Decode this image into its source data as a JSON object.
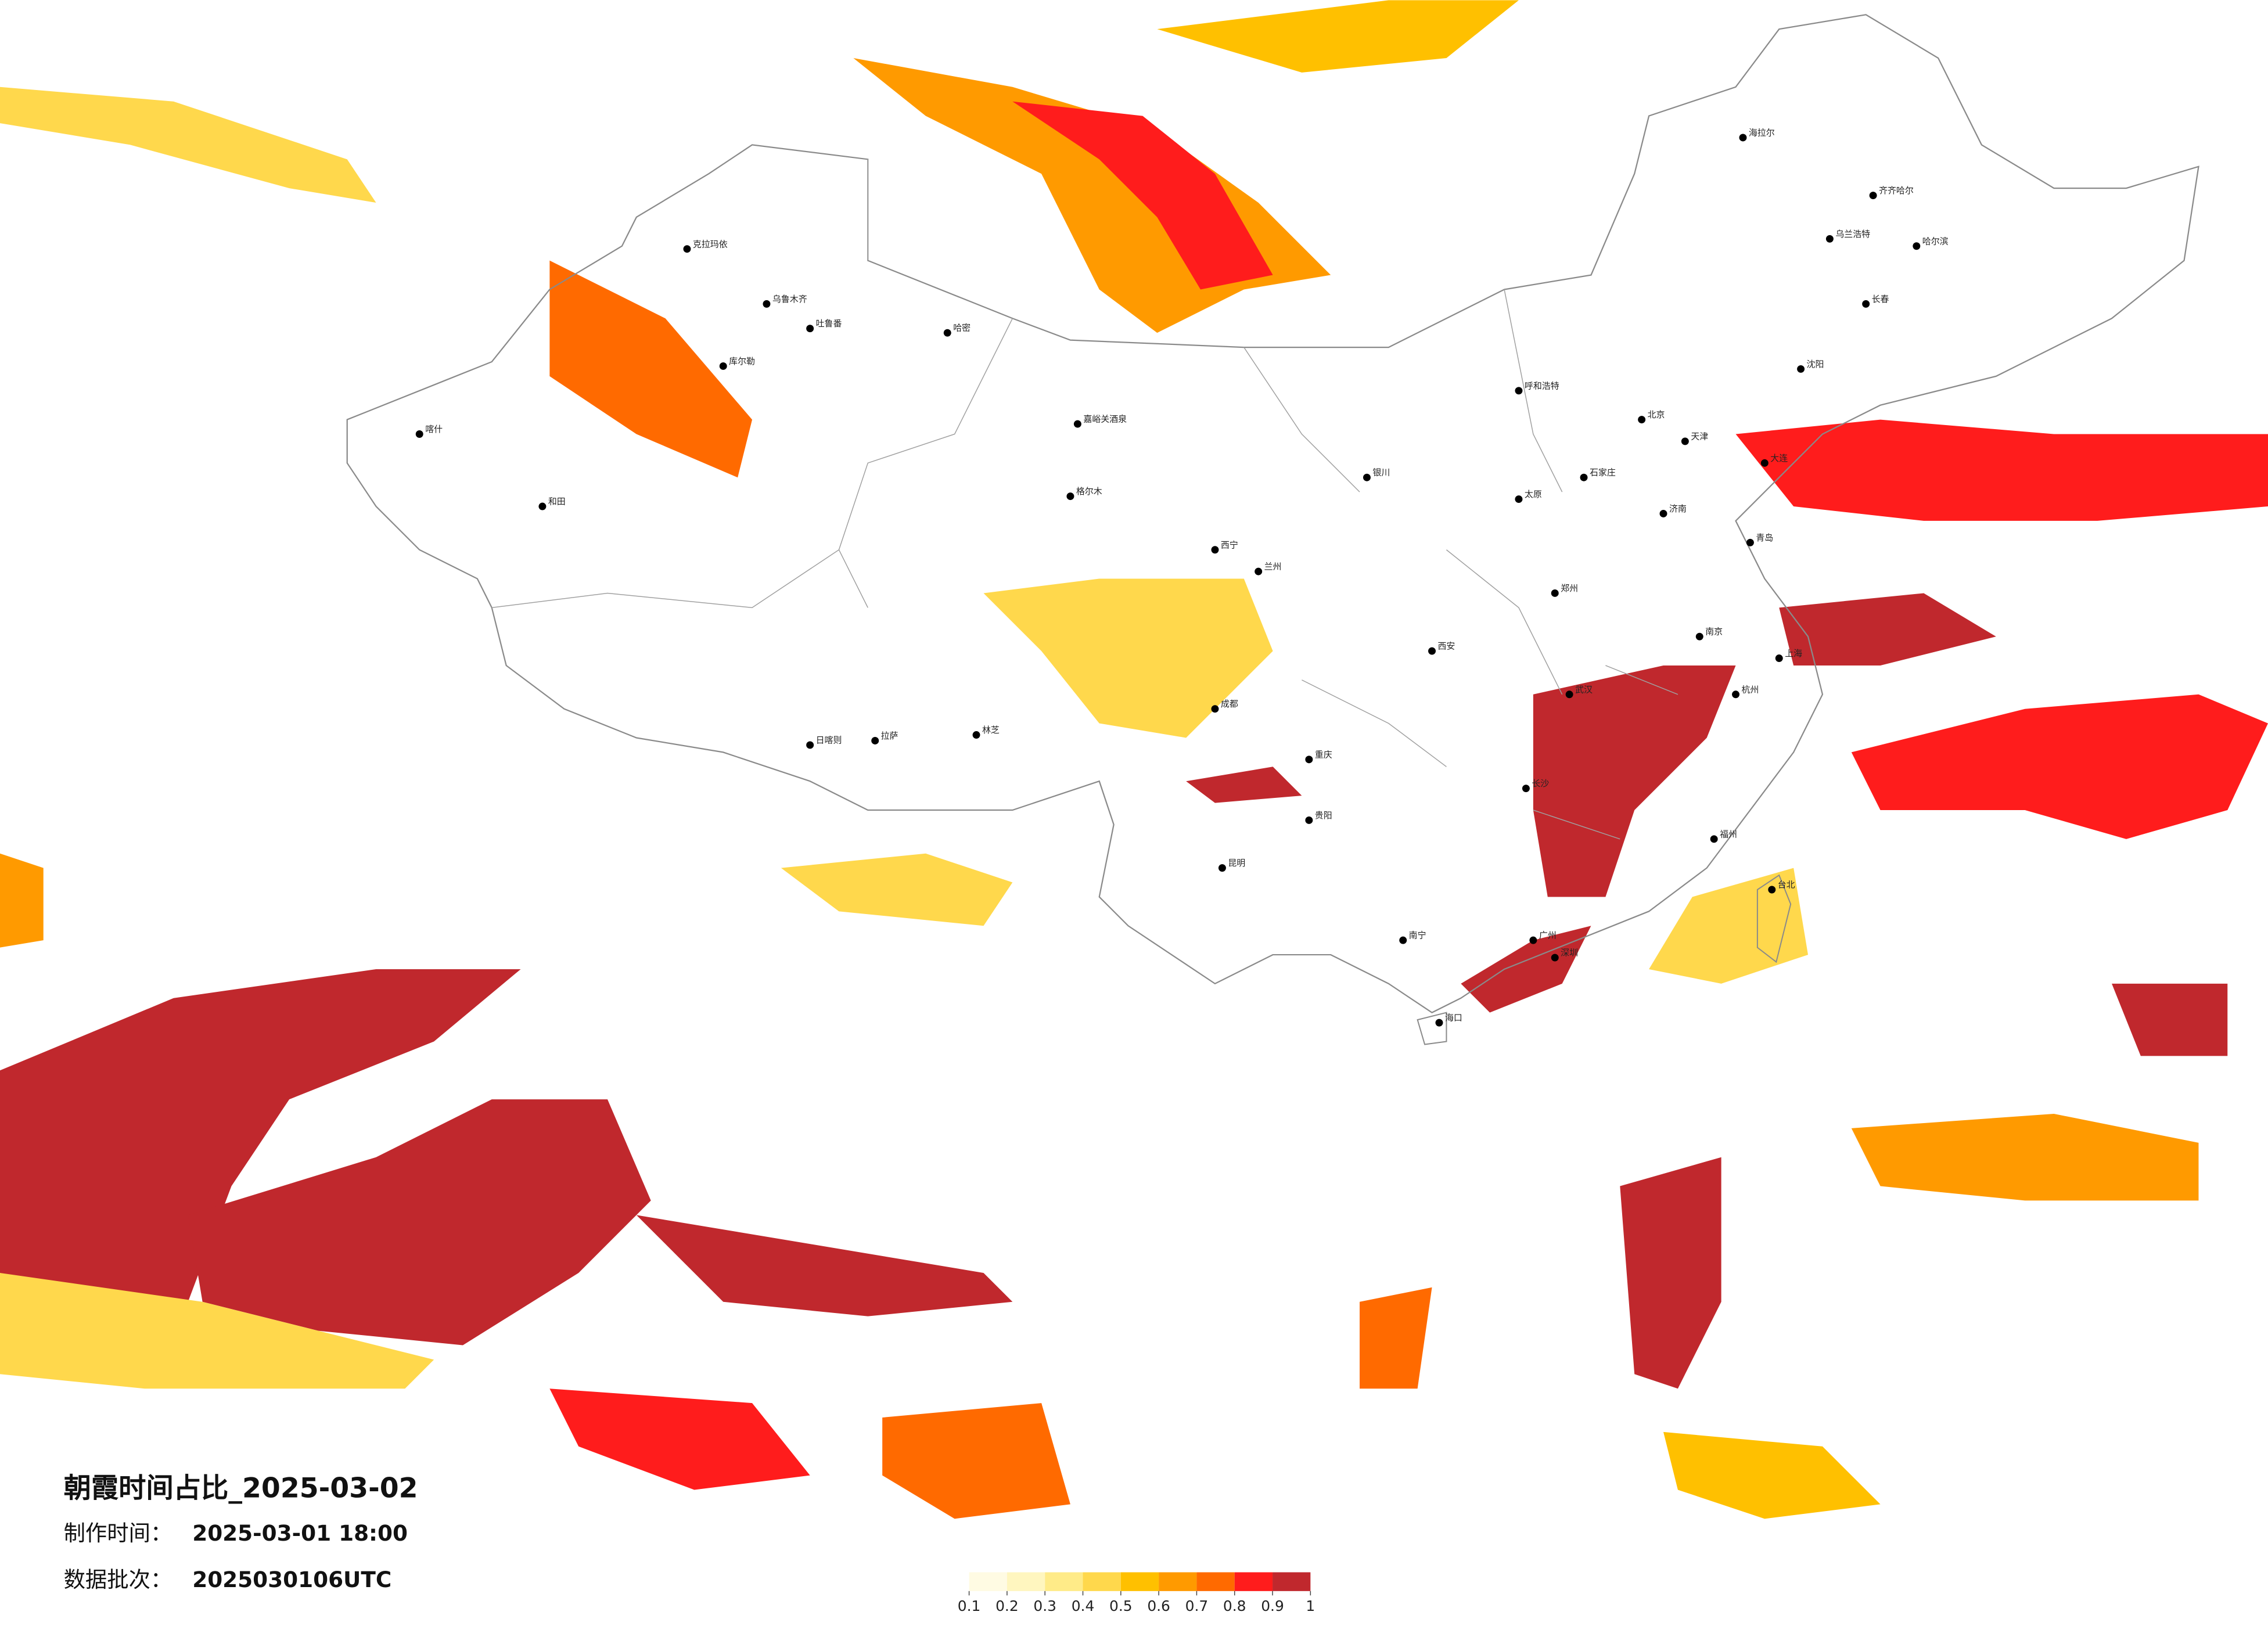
{
  "title": "朝霞时间占比_2025-03-02",
  "made_label": "制作时间：",
  "made_time": "2025-03-01 18:00",
  "batch_label": "数据批次：",
  "batch": "2025030106UTC",
  "legend": {
    "colors": [
      "#fffbe3",
      "#fff6bf",
      "#ffeb88",
      "#ffd84c",
      "#ffc000",
      "#ff9a00",
      "#ff6a00",
      "#ff1c1c",
      "#c0282d"
    ],
    "ticks": [
      0.1,
      0.2,
      0.3,
      0.4,
      0.5,
      0.6,
      0.7,
      0.8,
      0.9,
      1
    ]
  },
  "cities": [
    "克拉玛依",
    "乌鲁木齐",
    "吐鲁番",
    "哈密",
    "库尔勒",
    "和田",
    "喀什",
    "嘉峪关酒泉",
    "格尔木",
    "西宁",
    "兰州",
    "拉萨",
    "日喀则",
    "林芝",
    "成都",
    "重庆",
    "昆明",
    "贵阳",
    "南宁",
    "海口",
    "广州",
    "深圳",
    "长沙",
    "武汉",
    "南京",
    "上海",
    "杭州",
    "福州",
    "台北",
    "郑州",
    "西安",
    "太原",
    "北京",
    "天津",
    "石家庄",
    "济南",
    "呼和浩特",
    "银川",
    "沈阳",
    "长春",
    "哈尔滨",
    "齐齐哈尔",
    "海拉尔",
    "大连",
    "青岛",
    "乌兰浩特"
  ]
}
